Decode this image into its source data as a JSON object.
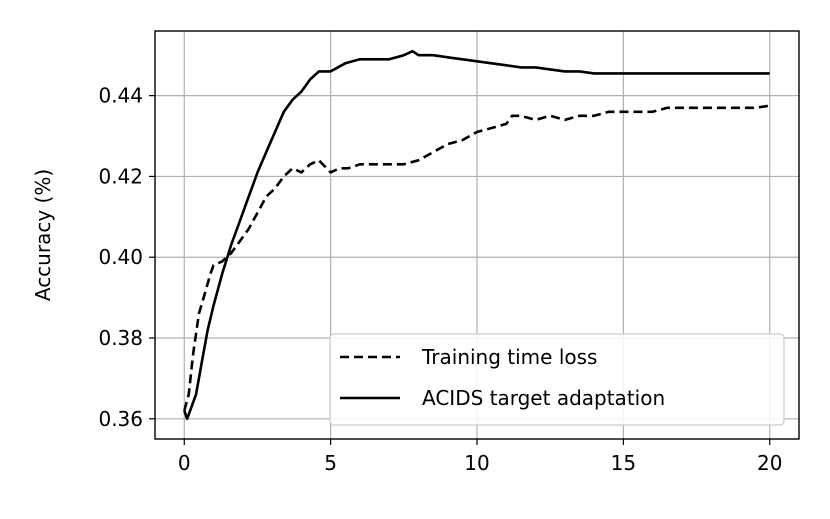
{
  "chart_data": {
    "type": "line",
    "title": "",
    "xlabel": "",
    "ylabel": "Accuracy (%)",
    "xlim": [
      -1,
      21
    ],
    "ylim": [
      0.355,
      0.456
    ],
    "xticks": [
      0,
      5,
      10,
      15,
      20
    ],
    "yticks": [
      0.36,
      0.38,
      0.4,
      0.42,
      0.44
    ],
    "xtick_labels": [
      "0",
      "5",
      "10",
      "15",
      "20"
    ],
    "ytick_labels": [
      "0.36",
      "0.38",
      "0.40",
      "0.42",
      "0.44"
    ],
    "grid": true,
    "legend_position": "lower-right",
    "series": [
      {
        "name": "Training time loss",
        "style": "dashed",
        "color": "#000000",
        "x": [
          0,
          0.15,
          0.3,
          0.5,
          0.7,
          0.9,
          1.0,
          1.3,
          1.6,
          1.9,
          2.2,
          2.5,
          2.8,
          3.1,
          3.4,
          3.7,
          4.0,
          4.3,
          4.6,
          5.0,
          5.3,
          5.6,
          6.0,
          6.5,
          7.0,
          7.5,
          8.0,
          8.5,
          9.0,
          9.5,
          10.0,
          10.5,
          11.0,
          11.2,
          11.5,
          12.0,
          12.5,
          13.0,
          13.5,
          14.0,
          14.5,
          15.0,
          15.5,
          16.0,
          16.5,
          17.0,
          17.5,
          18.0,
          18.5,
          19.0,
          19.5,
          20.0
        ],
        "y": [
          0.362,
          0.366,
          0.376,
          0.386,
          0.391,
          0.396,
          0.398,
          0.399,
          0.401,
          0.404,
          0.407,
          0.411,
          0.415,
          0.417,
          0.42,
          0.422,
          0.421,
          0.423,
          0.424,
          0.421,
          0.422,
          0.422,
          0.423,
          0.423,
          0.423,
          0.423,
          0.424,
          0.426,
          0.428,
          0.429,
          0.431,
          0.432,
          0.433,
          0.435,
          0.435,
          0.434,
          0.435,
          0.434,
          0.435,
          0.435,
          0.436,
          0.436,
          0.436,
          0.436,
          0.437,
          0.437,
          0.437,
          0.437,
          0.437,
          0.437,
          0.437,
          0.4375
        ]
      },
      {
        "name": "ACIDS target adaptation",
        "style": "solid",
        "color": "#000000",
        "x": [
          0,
          0.1,
          0.2,
          0.4,
          0.6,
          0.8,
          1.0,
          1.3,
          1.6,
          1.9,
          2.2,
          2.5,
          2.8,
          3.1,
          3.4,
          3.7,
          4.0,
          4.3,
          4.6,
          5.0,
          5.5,
          6.0,
          6.5,
          7.0,
          7.5,
          7.8,
          8.0,
          8.5,
          9.0,
          9.5,
          10.0,
          10.5,
          11.0,
          11.5,
          12.0,
          12.5,
          13.0,
          13.5,
          14.0,
          14.5,
          15.0,
          15.5,
          16.0,
          16.5,
          17.0,
          17.5,
          18.0,
          18.5,
          19.0,
          19.5,
          20.0
        ],
        "y": [
          0.362,
          0.36,
          0.362,
          0.366,
          0.374,
          0.382,
          0.388,
          0.396,
          0.403,
          0.409,
          0.415,
          0.421,
          0.426,
          0.431,
          0.436,
          0.439,
          0.441,
          0.444,
          0.446,
          0.446,
          0.448,
          0.449,
          0.449,
          0.449,
          0.45,
          0.451,
          0.45,
          0.45,
          0.4495,
          0.449,
          0.4485,
          0.448,
          0.4475,
          0.447,
          0.447,
          0.4465,
          0.446,
          0.446,
          0.4455,
          0.4455,
          0.4455,
          0.4455,
          0.4455,
          0.4455,
          0.4455,
          0.4455,
          0.4455,
          0.4455,
          0.4455,
          0.4455,
          0.4455
        ]
      }
    ]
  }
}
